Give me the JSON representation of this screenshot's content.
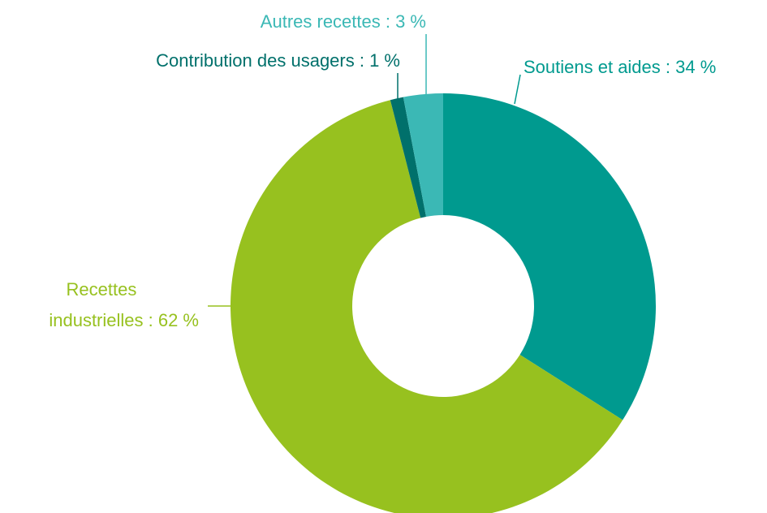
{
  "chart_data": {
    "type": "donut",
    "values": [
      34,
      62,
      1,
      3
    ],
    "value_labels": [
      "Soutiens et aides : 34 %",
      "Recettes industrielles : 62 %",
      "Contribution des usagers : 1 %",
      "Autres recettes : 3 %"
    ],
    "colors": [
      "#009a8f",
      "#97c11f",
      "#00706b",
      "#3bb8b5"
    ]
  }
}
